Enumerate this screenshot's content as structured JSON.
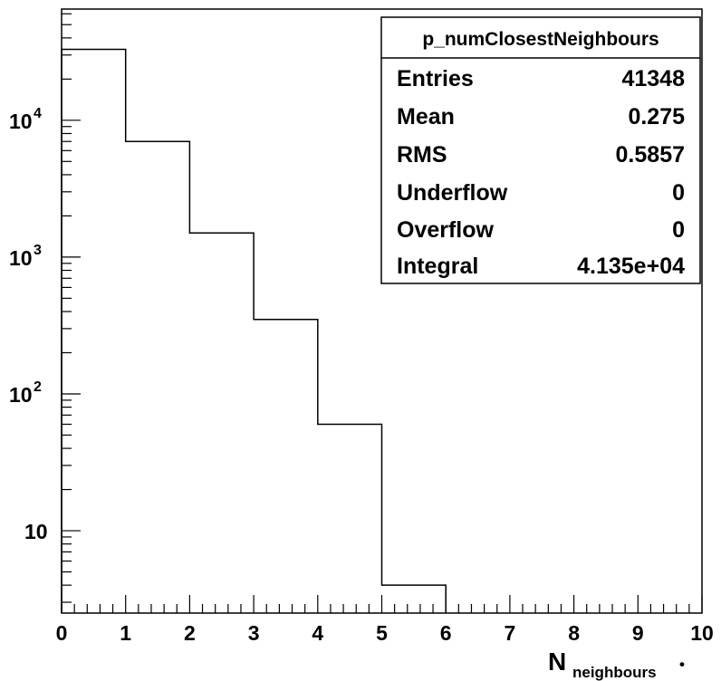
{
  "chart_data": {
    "type": "histogram",
    "title": "",
    "xlabel": "N",
    "xlabel_subscript": "neighbours",
    "xlabel_suffix": "•",
    "ylabel": "",
    "y_scale": "log",
    "xlim": [
      0,
      10
    ],
    "ylim": [
      2.5,
      65000
    ],
    "grid": false,
    "bin_edges": [
      0,
      1,
      2,
      3,
      4,
      5,
      6,
      7,
      8,
      9,
      10
    ],
    "values": [
      33000,
      7000,
      1500,
      350,
      60,
      4,
      0,
      0,
      0,
      0
    ],
    "x_tick_labels": [
      "0",
      "1",
      "2",
      "3",
      "4",
      "5",
      "6",
      "7",
      "8",
      "9",
      "10"
    ],
    "y_tick_labels": [
      {
        "value": 10,
        "base": "10",
        "exp": ""
      },
      {
        "value": 100,
        "base": "10",
        "exp": "2"
      },
      {
        "value": 1000,
        "base": "10",
        "exp": "3"
      },
      {
        "value": 10000,
        "base": "10",
        "exp": "4"
      }
    ],
    "stats_box": {
      "title": "p_numClosestNeighbours",
      "position": "top-right",
      "rows": [
        {
          "label": "Entries",
          "value": "41348"
        },
        {
          "label": "Mean",
          "value": "0.275"
        },
        {
          "label": "RMS",
          "value": "0.5857"
        },
        {
          "label": "Underflow",
          "value": "0"
        },
        {
          "label": "Overflow",
          "value": "0"
        },
        {
          "label": "Integral",
          "value": "4.135e+04"
        }
      ]
    },
    "colors": {
      "line": "#000000",
      "background": "#ffffff"
    }
  }
}
